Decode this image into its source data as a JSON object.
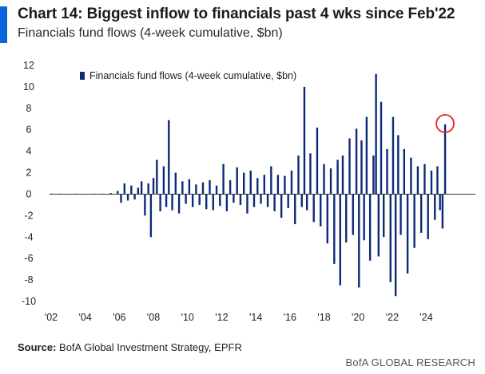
{
  "header": {
    "title": "Chart 14: Biggest inflow to financials past 4 wks since Feb'22",
    "subtitle": "Financials fund flows (4-week cumulative, $bn)"
  },
  "footer": {
    "source_label": "Source:",
    "source_text": " BofA Global Investment Strategy, EPFR",
    "brand": "BofA GLOBAL RESEARCH"
  },
  "colors": {
    "series": "#0c2a78",
    "highlight": "#e2231a",
    "accent": "#0a66d8"
  },
  "chart_data": {
    "type": "bar",
    "title": "Chart 14: Biggest inflow to financials past 4 wks since Feb'22",
    "subtitle": "Financials fund flows (4-week cumulative, $bn)",
    "legend": [
      "Financials fund flows (4-week cumulative, $bn)"
    ],
    "legend_position": "top-left",
    "ylim": [
      -10,
      12
    ],
    "yticks": [
      12,
      10,
      8,
      6,
      4,
      2,
      0,
      -2,
      -4,
      -6,
      -8,
      -10
    ],
    "xlim": [
      2002,
      2025.8
    ],
    "xticks": [
      "'02",
      "'04",
      "'06",
      "'08",
      "'10",
      "'12",
      "'14",
      "'16",
      "'18",
      "'20",
      "'22",
      "'24"
    ],
    "xtick_years": [
      2002,
      2004,
      2006,
      2008,
      2010,
      2012,
      2014,
      2016,
      2018,
      2020,
      2022,
      2024
    ],
    "x": [
      2002.0,
      2002.5,
      2003.0,
      2003.5,
      2004.0,
      2004.5,
      2005.0,
      2005.5,
      2005.9,
      2006.1,
      2006.3,
      2006.5,
      2006.7,
      2006.9,
      2007.1,
      2007.3,
      2007.5,
      2007.7,
      2007.85,
      2008.0,
      2008.2,
      2008.4,
      2008.6,
      2008.75,
      2008.9,
      2009.1,
      2009.3,
      2009.5,
      2009.7,
      2009.9,
      2010.1,
      2010.3,
      2010.5,
      2010.7,
      2010.9,
      2011.1,
      2011.3,
      2011.5,
      2011.7,
      2011.9,
      2012.1,
      2012.3,
      2012.5,
      2012.7,
      2012.9,
      2013.1,
      2013.3,
      2013.5,
      2013.7,
      2013.9,
      2014.1,
      2014.3,
      2014.5,
      2014.7,
      2014.9,
      2015.1,
      2015.3,
      2015.5,
      2015.7,
      2015.9,
      2016.1,
      2016.3,
      2016.5,
      2016.7,
      2016.85,
      2017.0,
      2017.2,
      2017.4,
      2017.6,
      2017.8,
      2018.0,
      2018.2,
      2018.4,
      2018.6,
      2018.8,
      2018.95,
      2019.1,
      2019.3,
      2019.5,
      2019.7,
      2019.9,
      2020.05,
      2020.2,
      2020.35,
      2020.5,
      2020.7,
      2020.9,
      2021.05,
      2021.2,
      2021.35,
      2021.5,
      2021.7,
      2021.9,
      2022.05,
      2022.2,
      2022.35,
      2022.5,
      2022.7,
      2022.9,
      2023.1,
      2023.3,
      2023.5,
      2023.7,
      2023.9,
      2024.1,
      2024.3,
      2024.5,
      2024.65,
      2024.8,
      2024.95,
      2025.1
    ],
    "values": [
      0.05,
      0.05,
      0.0,
      0.05,
      0.0,
      0.05,
      0.05,
      0.1,
      0.3,
      -0.8,
      1.0,
      -0.6,
      0.8,
      -0.5,
      0.6,
      1.2,
      -2.0,
      1.0,
      -4.0,
      1.5,
      3.2,
      -1.6,
      2.6,
      -1.2,
      6.9,
      -1.5,
      2.0,
      -1.8,
      1.2,
      -0.9,
      1.4,
      -1.2,
      0.9,
      -1.0,
      1.1,
      -1.4,
      1.3,
      -1.5,
      0.8,
      -1.1,
      2.8,
      -1.6,
      1.3,
      -0.8,
      2.5,
      -1.0,
      2.0,
      -1.8,
      2.2,
      -1.2,
      1.5,
      -0.9,
      1.8,
      -1.2,
      2.6,
      -1.6,
      1.8,
      -2.2,
      1.7,
      -1.3,
      2.2,
      -2.8,
      3.6,
      -1.2,
      10.0,
      -1.5,
      3.8,
      -2.6,
      6.2,
      -3.0,
      2.8,
      -4.6,
      2.4,
      -6.5,
      3.2,
      -8.5,
      3.6,
      -4.5,
      5.2,
      -3.8,
      6.1,
      -8.7,
      5.0,
      -4.3,
      7.2,
      -6.2,
      3.6,
      11.2,
      -5.8,
      8.6,
      -4.0,
      4.2,
      -8.2,
      7.2,
      -9.5,
      5.5,
      -3.8,
      4.2,
      -7.4,
      3.4,
      -5.0,
      2.6,
      -3.6,
      2.8,
      -4.2,
      2.2,
      -2.4,
      2.6,
      -1.5,
      -3.2,
      6.5
    ]
  }
}
